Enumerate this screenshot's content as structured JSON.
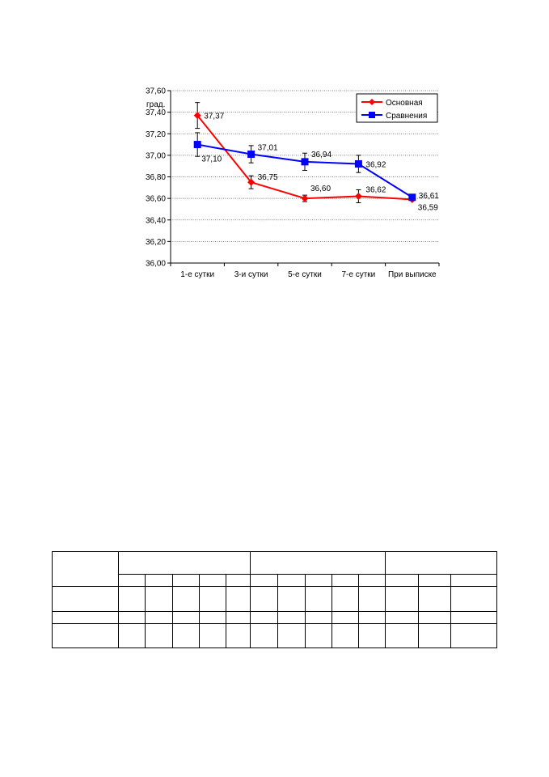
{
  "chart_data": {
    "type": "line",
    "categories": [
      "1-е сутки",
      "3-и сутки",
      "5-е сутки",
      "7-е сутки",
      "При выписке"
    ],
    "ylabel": "град.",
    "ylim": [
      36.0,
      37.6
    ],
    "yticks": [
      "36,00",
      "36,20",
      "36,40",
      "36,60",
      "36,80",
      "37,00",
      "37,20",
      "37,40",
      "37,60"
    ],
    "grid": true,
    "legend_position": "top-right",
    "series": [
      {
        "name": "Основная",
        "color": "#ff0000",
        "marker": "diamond",
        "values": [
          37.37,
          36.75,
          36.6,
          36.62,
          36.59
        ],
        "labels": [
          "37,37",
          "36,75",
          "36,60",
          "36,62",
          "36,59"
        ],
        "error": [
          0.12,
          0.06,
          0.03,
          0.06,
          null
        ]
      },
      {
        "name": "Сравнения",
        "color": "#0000ff",
        "marker": "square",
        "values": [
          37.1,
          37.01,
          36.94,
          36.92,
          36.61
        ],
        "labels": [
          "37,10",
          "37,01",
          "36,94",
          "36,92",
          "36,61"
        ],
        "error": [
          0.11,
          0.08,
          0.08,
          0.08,
          null
        ]
      }
    ]
  },
  "table": {
    "rows": 5,
    "columns": 13,
    "cells_empty": true
  }
}
